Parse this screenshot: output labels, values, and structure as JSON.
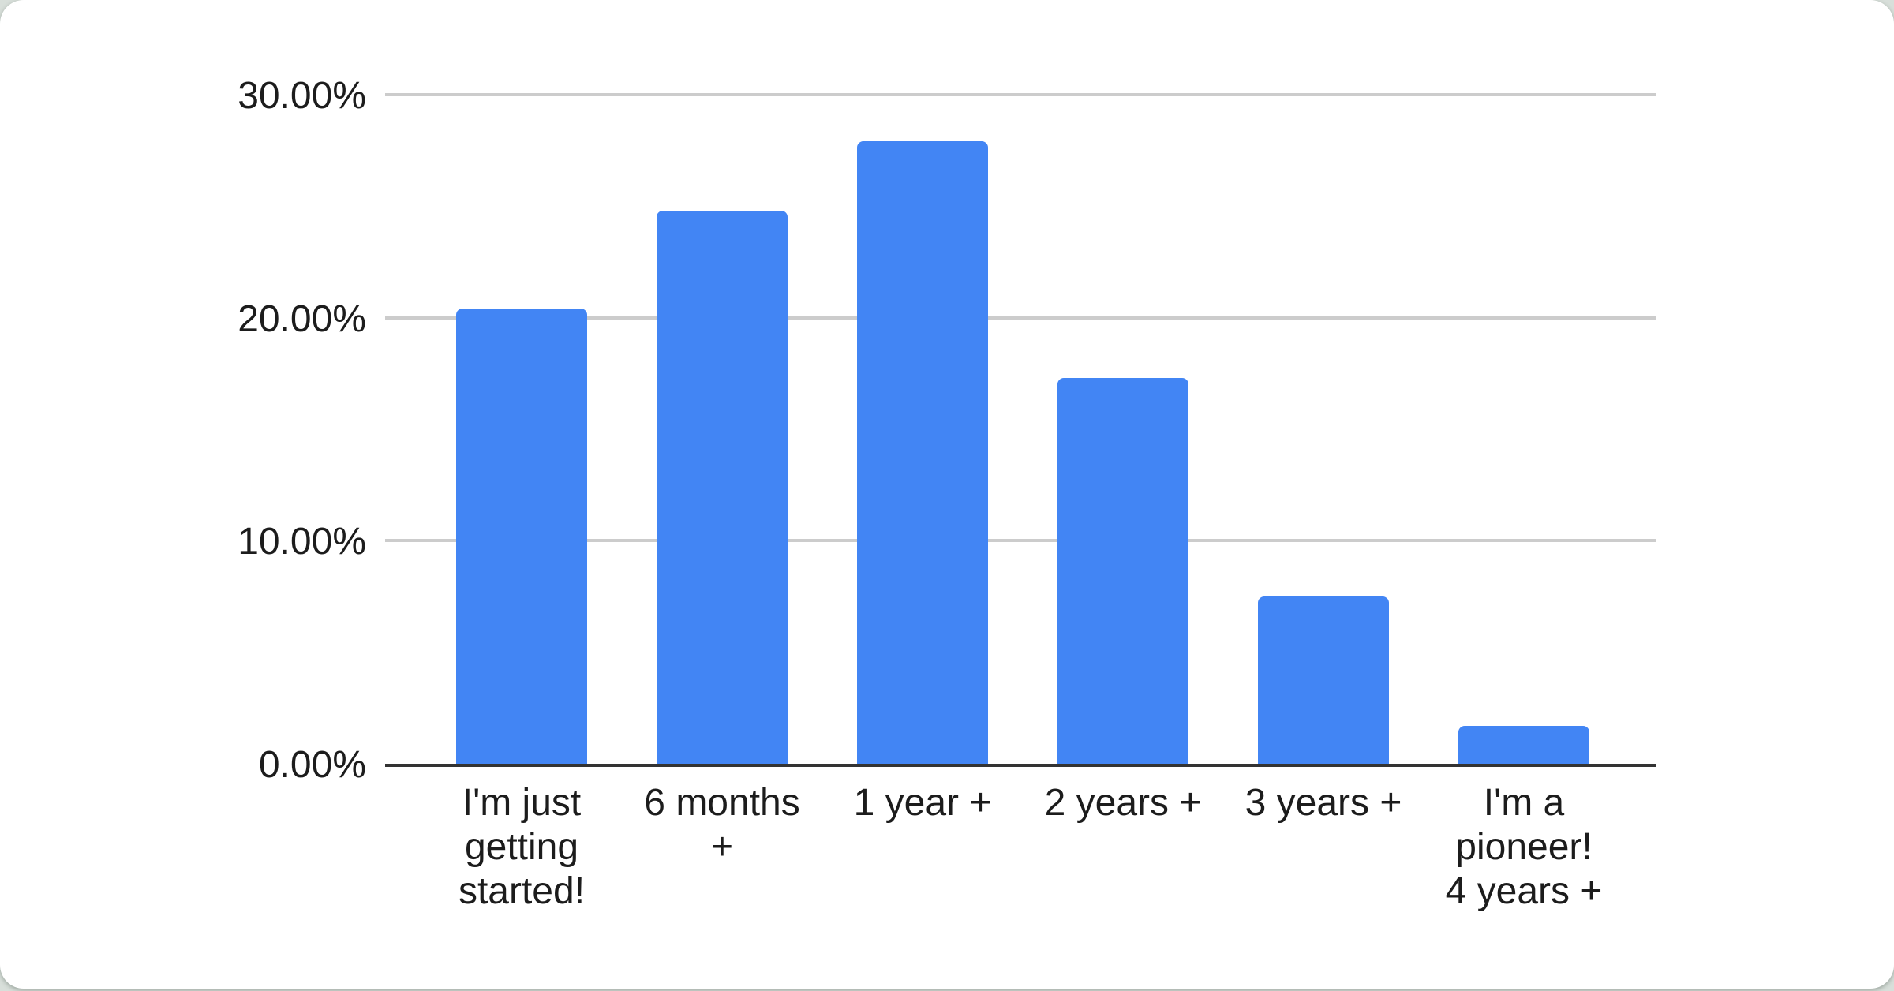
{
  "chart_data": {
    "type": "bar",
    "title": "",
    "xlabel": "",
    "ylabel": "",
    "categories": [
      "I'm just\ngetting\nstarted!",
      "6 months\n+",
      "1 year +",
      "2 years +",
      "3 years +",
      "I'm a\npioneer!\n4 years +"
    ],
    "values": [
      20.4,
      24.8,
      27.9,
      17.3,
      7.5,
      1.7
    ],
    "value_unit": "percent",
    "ylim": [
      0,
      30
    ],
    "yticks": [
      "30.00%",
      "20.00%",
      "10.00%",
      "0.00%"
    ],
    "ytick_values": [
      30,
      20,
      10,
      0
    ],
    "grid": true,
    "legend_position": "none",
    "colors": {
      "bar": "#4285F4",
      "gridline": "#cccccc",
      "axis": "#333333",
      "text": "#1c1c1c",
      "card_background": "#ffffff",
      "page_background": "#d8dfda"
    }
  }
}
